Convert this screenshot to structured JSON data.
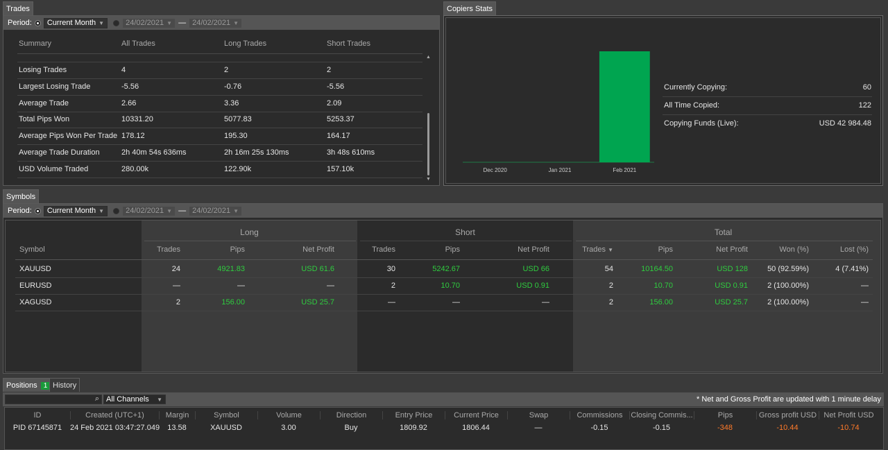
{
  "trades": {
    "tab_label": "Trades",
    "period_label": "Period:",
    "period_value": "Current Month",
    "date_from": "24/02/2021",
    "date_to": "24/02/2021",
    "dash": "—",
    "columns": [
      "Summary",
      "All Trades",
      "Long Trades",
      "Short Trades"
    ],
    "rows": [
      {
        "label": "Losing Trades",
        "all": "4",
        "long": "2",
        "short": "2"
      },
      {
        "label": "Largest Losing Trade",
        "all": "-5.56",
        "long": "-0.76",
        "short": "-5.56"
      },
      {
        "label": "Average Trade",
        "all": "2.66",
        "long": "3.36",
        "short": "2.09"
      },
      {
        "label": "Total Pips Won",
        "all": "10331.20",
        "long": "5077.83",
        "short": "5253.37"
      },
      {
        "label": "Average Pips Won Per Trade",
        "all": "178.12",
        "long": "195.30",
        "short": "164.17"
      },
      {
        "label": "Average Trade Duration",
        "all": "2h 40m 54s 636ms",
        "long": "2h 16m 25s 130ms",
        "short": "3h 48s 610ms"
      },
      {
        "label": "USD Volume Traded",
        "all": "280.00k",
        "long": "122.90k",
        "short": "157.10k"
      }
    ]
  },
  "copiers": {
    "tab_label": "Copiers Stats",
    "stats": [
      {
        "label": "Currently Copying:",
        "value": "60"
      },
      {
        "label": "All Time Copied:",
        "value": "122"
      },
      {
        "label": "Copying Funds (Live):",
        "value": "USD 42 984.48"
      }
    ]
  },
  "chart_data": {
    "type": "bar",
    "categories": [
      "Dec 2020",
      "Jan 2021",
      "Feb 2021"
    ],
    "values": [
      0,
      0,
      60
    ],
    "ylim": [
      0,
      60
    ],
    "color": "#00a550"
  },
  "symbols": {
    "tab_label": "Symbols",
    "period_label": "Period:",
    "period_value": "Current Month",
    "date_from": "24/02/2021",
    "date_to": "24/02/2021",
    "dash": "—",
    "groups": [
      "Long",
      "Short",
      "Total"
    ],
    "columns": {
      "symbol": "Symbol",
      "long_trades": "Trades",
      "long_pips": "Pips",
      "long_profit": "Net Profit",
      "short_trades": "Trades",
      "short_pips": "Pips",
      "short_profit": "Net Profit",
      "total_trades": "Trades",
      "total_pips": "Pips",
      "total_profit": "Net Profit",
      "won": "Won (%)",
      "lost": "Lost (%)"
    },
    "sort_icon": "▼",
    "rows": [
      {
        "symbol": "XAUUSD",
        "lt": "24",
        "lp": "4921.83",
        "lnp": "USD 61.6",
        "st": "30",
        "sp": "5242.67",
        "snp": "USD 66",
        "tt": "54",
        "tp": "10164.50",
        "tnp": "USD 128",
        "won": "50 (92.59%)",
        "lost": "4 (7.41%)"
      },
      {
        "symbol": "EURUSD",
        "lt": "—",
        "lp": "—",
        "lnp": "—",
        "st": "2",
        "sp": "10.70",
        "snp": "USD 0.91",
        "tt": "2",
        "tp": "10.70",
        "tnp": "USD 0.91",
        "won": "2 (100.00%)",
        "lost": "—"
      },
      {
        "symbol": "XAGUSD",
        "lt": "2",
        "lp": "156.00",
        "lnp": "USD 25.7",
        "st": "—",
        "sp": "—",
        "snp": "—",
        "tt": "2",
        "tp": "156.00",
        "tnp": "USD 25.7",
        "won": "2 (100.00%)",
        "lost": "—"
      }
    ]
  },
  "positions": {
    "tab_label": "Positions",
    "tab_badge": "1",
    "history_tab": "History",
    "channel_select": "All Channels",
    "note": "* Net and Gross Profit are updated with 1 minute delay",
    "columns": [
      "ID",
      "Created (UTC+1)",
      "Margin",
      "Symbol",
      "Volume",
      "Direction",
      "Entry Price",
      "Current Price",
      "Swap",
      "Commissions",
      "Closing Commis...",
      "Pips",
      "Gross profit USD",
      "Net Profit USD"
    ],
    "rows": [
      [
        "PID 67145871",
        "24 Feb 2021 03:47:27.049",
        "13.58",
        "XAUUSD",
        "3.00",
        "Buy",
        "1809.92",
        "1806.44",
        "—",
        "-0.15",
        "-0.15",
        "-348",
        "-10.44",
        "-10.74"
      ]
    ]
  }
}
